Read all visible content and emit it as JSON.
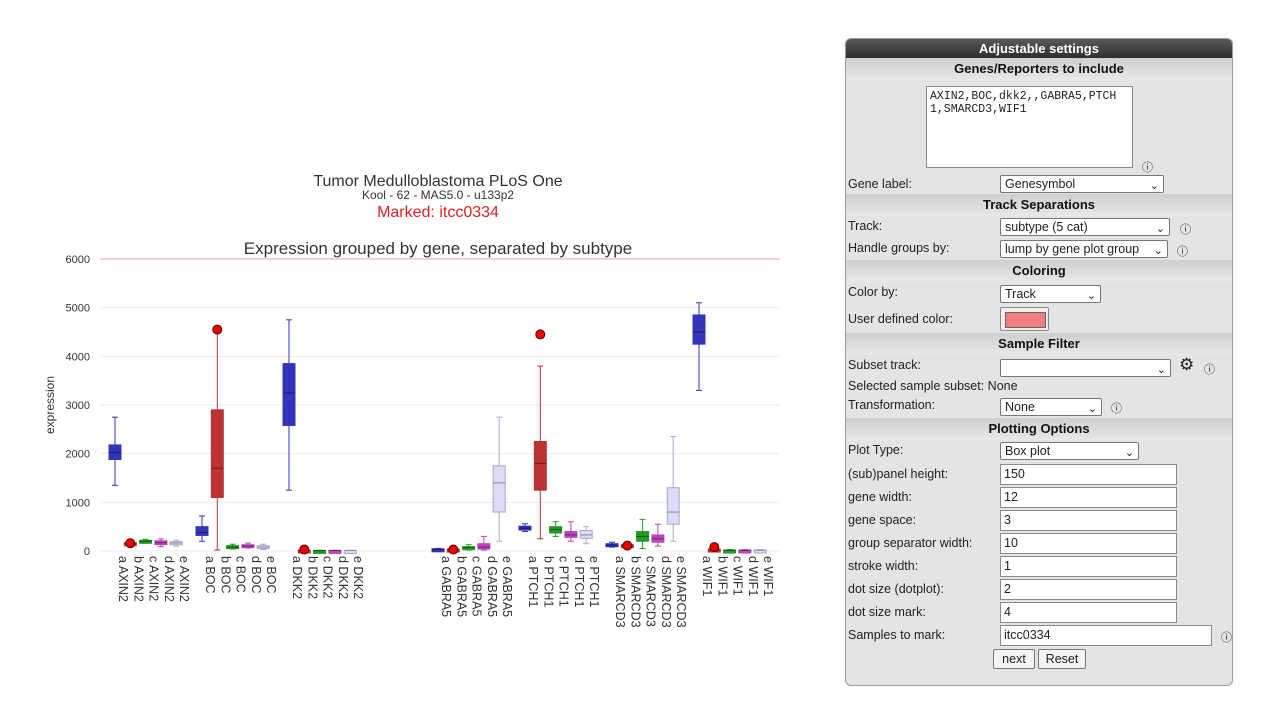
{
  "chart_data": {
    "type": "box",
    "title": "Tumor Medulloblastoma PLoS One",
    "subtitle": "Kool - 62 - MAS5.0 - u133p2",
    "marked_label": "Marked: itcc0334",
    "plot_title": "Expression grouped by gene, separated by subtype",
    "ylabel": "expression",
    "ylim": [
      0,
      6000
    ],
    "yticks": [
      0,
      1000,
      2000,
      3000,
      4000,
      5000,
      6000
    ],
    "series_colors": {
      "a": "#3333bb",
      "b": "#bb3333",
      "c": "#229922",
      "d": "#bb44bb",
      "e": "#dcdcf4"
    },
    "reference_line": 6000,
    "genes": [
      {
        "name": "AXIN2",
        "boxes": [
          {
            "label": "a AXIN2",
            "subtype": "a",
            "min": 1350,
            "q1": 1880,
            "median": 2020,
            "q3": 2180,
            "max": 2750
          },
          {
            "label": "b AXIN2",
            "subtype": "b",
            "min": 140,
            "q1": 155,
            "median": 160,
            "q3": 170,
            "max": 185
          },
          {
            "label": "c AXIN2",
            "subtype": "c",
            "min": 160,
            "q1": 185,
            "median": 200,
            "q3": 220,
            "max": 240
          },
          {
            "label": "d AXIN2",
            "subtype": "d",
            "min": 90,
            "q1": 130,
            "median": 170,
            "q3": 210,
            "max": 250
          },
          {
            "label": "e AXIN2",
            "subtype": "e",
            "min": 100,
            "q1": 140,
            "median": 165,
            "q3": 190,
            "max": 220
          }
        ]
      },
      {
        "name": "BOC",
        "boxes": [
          {
            "label": "a BOC",
            "subtype": "a",
            "min": 200,
            "q1": 320,
            "median": 380,
            "q3": 500,
            "max": 720
          },
          {
            "label": "b BOC",
            "subtype": "b",
            "min": 20,
            "q1": 1100,
            "median": 1700,
            "q3": 2900,
            "max": 4500
          },
          {
            "label": "c BOC",
            "subtype": "c",
            "min": 40,
            "q1": 60,
            "median": 80,
            "q3": 110,
            "max": 140
          },
          {
            "label": "d BOC",
            "subtype": "d",
            "min": 60,
            "q1": 80,
            "median": 100,
            "q3": 130,
            "max": 160
          },
          {
            "label": "e BOC",
            "subtype": "e",
            "min": 30,
            "q1": 60,
            "median": 80,
            "q3": 110,
            "max": 140
          }
        ]
      },
      {
        "name": "DKK2",
        "boxes": [
          {
            "label": "a DKK2",
            "subtype": "a",
            "min": 1250,
            "q1": 2580,
            "median": 3250,
            "q3": 3850,
            "max": 4750
          },
          {
            "label": "b DKK2",
            "subtype": "b",
            "min": 5,
            "q1": 10,
            "median": 15,
            "q3": 20,
            "max": 30
          },
          {
            "label": "c DKK2",
            "subtype": "c",
            "min": 5,
            "q1": 8,
            "median": 10,
            "q3": 12,
            "max": 15
          },
          {
            "label": "d DKK2",
            "subtype": "d",
            "min": 5,
            "q1": 8,
            "median": 10,
            "q3": 12,
            "max": 15
          },
          {
            "label": "e DKK2",
            "subtype": "e",
            "min": 5,
            "q1": 8,
            "median": 10,
            "q3": 12,
            "max": 15
          }
        ]
      },
      {
        "name": "GABRA5",
        "boxes": [
          {
            "label": "a GABRA5",
            "subtype": "a",
            "min": 15,
            "q1": 25,
            "median": 35,
            "q3": 45,
            "max": 55
          },
          {
            "label": "b GABRA5",
            "subtype": "b",
            "min": 10,
            "q1": 20,
            "median": 30,
            "q3": 40,
            "max": 50
          },
          {
            "label": "c GABRA5",
            "subtype": "c",
            "min": 20,
            "q1": 50,
            "median": 70,
            "q3": 90,
            "max": 130
          },
          {
            "label": "d GABRA5",
            "subtype": "d",
            "min": 20,
            "q1": 40,
            "median": 80,
            "q3": 150,
            "max": 300
          },
          {
            "label": "e GABRA5",
            "subtype": "e",
            "min": 200,
            "q1": 800,
            "median": 1400,
            "q3": 1750,
            "max": 2750
          }
        ]
      },
      {
        "name": "PTCH1",
        "boxes": [
          {
            "label": "a PTCH1",
            "subtype": "a",
            "min": 400,
            "q1": 430,
            "median": 470,
            "q3": 510,
            "max": 560
          },
          {
            "label": "b PTCH1",
            "subtype": "b",
            "min": 250,
            "q1": 1250,
            "median": 1800,
            "q3": 2250,
            "max": 3800
          },
          {
            "label": "c PTCH1",
            "subtype": "c",
            "min": 300,
            "q1": 370,
            "median": 440,
            "q3": 500,
            "max": 600
          },
          {
            "label": "d PTCH1",
            "subtype": "d",
            "min": 200,
            "q1": 280,
            "median": 330,
            "q3": 400,
            "max": 600
          },
          {
            "label": "e PTCH1",
            "subtype": "e",
            "min": 150,
            "q1": 260,
            "median": 330,
            "q3": 420,
            "max": 500
          }
        ]
      },
      {
        "name": "SMARCD3",
        "boxes": [
          {
            "label": "a SMARCD3",
            "subtype": "a",
            "min": 80,
            "q1": 100,
            "median": 120,
            "q3": 150,
            "max": 180
          },
          {
            "label": "b SMARCD3",
            "subtype": "b",
            "min": 50,
            "q1": 80,
            "median": 110,
            "q3": 130,
            "max": 180
          },
          {
            "label": "c SMARCD3",
            "subtype": "c",
            "min": 50,
            "q1": 200,
            "median": 300,
            "q3": 400,
            "max": 650
          },
          {
            "label": "d SMARCD3",
            "subtype": "d",
            "min": 100,
            "q1": 180,
            "median": 250,
            "q3": 330,
            "max": 550
          },
          {
            "label": "e SMARCD3",
            "subtype": "e",
            "min": 200,
            "q1": 550,
            "median": 800,
            "q3": 1300,
            "max": 2350
          }
        ]
      },
      {
        "name": "WIF1",
        "boxes": [
          {
            "label": "a WIF1",
            "subtype": "a",
            "min": 3300,
            "q1": 4250,
            "median": 4500,
            "q3": 4850,
            "max": 5100
          },
          {
            "label": "b WIF1",
            "subtype": "b",
            "min": 10,
            "q1": 20,
            "median": 30,
            "q3": 40,
            "max": 60
          },
          {
            "label": "c WIF1",
            "subtype": "c",
            "min": 5,
            "q1": 10,
            "median": 15,
            "q3": 20,
            "max": 30
          },
          {
            "label": "d WIF1",
            "subtype": "d",
            "min": 5,
            "q1": 10,
            "median": 15,
            "q3": 20,
            "max": 30
          },
          {
            "label": "e WIF1",
            "subtype": "e",
            "min": 5,
            "q1": 10,
            "median": 15,
            "q3": 20,
            "max": 30
          }
        ]
      }
    ],
    "marked_points": [
      {
        "gene": "AXIN2",
        "subtype": "b",
        "value": 160
      },
      {
        "gene": "BOC",
        "subtype": "b",
        "value": 4550
      },
      {
        "gene": "DKK2",
        "subtype": "b",
        "value": 30
      },
      {
        "gene": "GABRA5",
        "subtype": "b",
        "value": 30
      },
      {
        "gene": "PTCH1",
        "subtype": "b",
        "value": 4450
      },
      {
        "gene": "SMARCD3",
        "subtype": "b",
        "value": 110
      },
      {
        "gene": "WIF1",
        "subtype": "b",
        "value": 80
      }
    ],
    "marker_color": "#ee0000"
  },
  "panel": {
    "title": "Adjustable settings",
    "genes_section": "Genes/Reporters to include",
    "genes_text": "AXIN2,BOC,dkk2,,GABRA5,PTCH1,SMARCD3,WIF1",
    "gene_label_label": "Gene label:",
    "gene_label_value": "Genesymbol",
    "track_section": "Track Separations",
    "track_label": "Track:",
    "track_value": "subtype (5 cat)",
    "handle_label": "Handle groups by:",
    "handle_value": "lump by gene plot group",
    "coloring_section": "Coloring",
    "color_by_label": "Color by:",
    "color_by_value": "Track",
    "user_color_label": "User defined color:",
    "user_color": "#f08080",
    "filter_section": "Sample Filter",
    "subset_label": "Subset track:",
    "subset_value": "",
    "selected_subset_text": "Selected sample subset: None",
    "transformation_label": "Transformation:",
    "transformation_value": "None",
    "plotting_section": "Plotting Options",
    "plot_type_label": "Plot Type:",
    "plot_type_value": "Box plot",
    "fields": [
      {
        "label": "(sub)panel height:",
        "value": "150"
      },
      {
        "label": "gene width:",
        "value": "12"
      },
      {
        "label": "gene space:",
        "value": "3"
      },
      {
        "label": "group separator width:",
        "value": "10"
      },
      {
        "label": "stroke width:",
        "value": "1"
      },
      {
        "label": "dot size (dotplot):",
        "value": "2"
      },
      {
        "label": "dot size mark:",
        "value": "4"
      }
    ],
    "samples_mark_label": "Samples to mark:",
    "samples_mark_value": "itcc0334",
    "next_label": "next",
    "reset_label": "Reset",
    "info_icon": "info-icon",
    "gear_icon": "gear-icon"
  }
}
